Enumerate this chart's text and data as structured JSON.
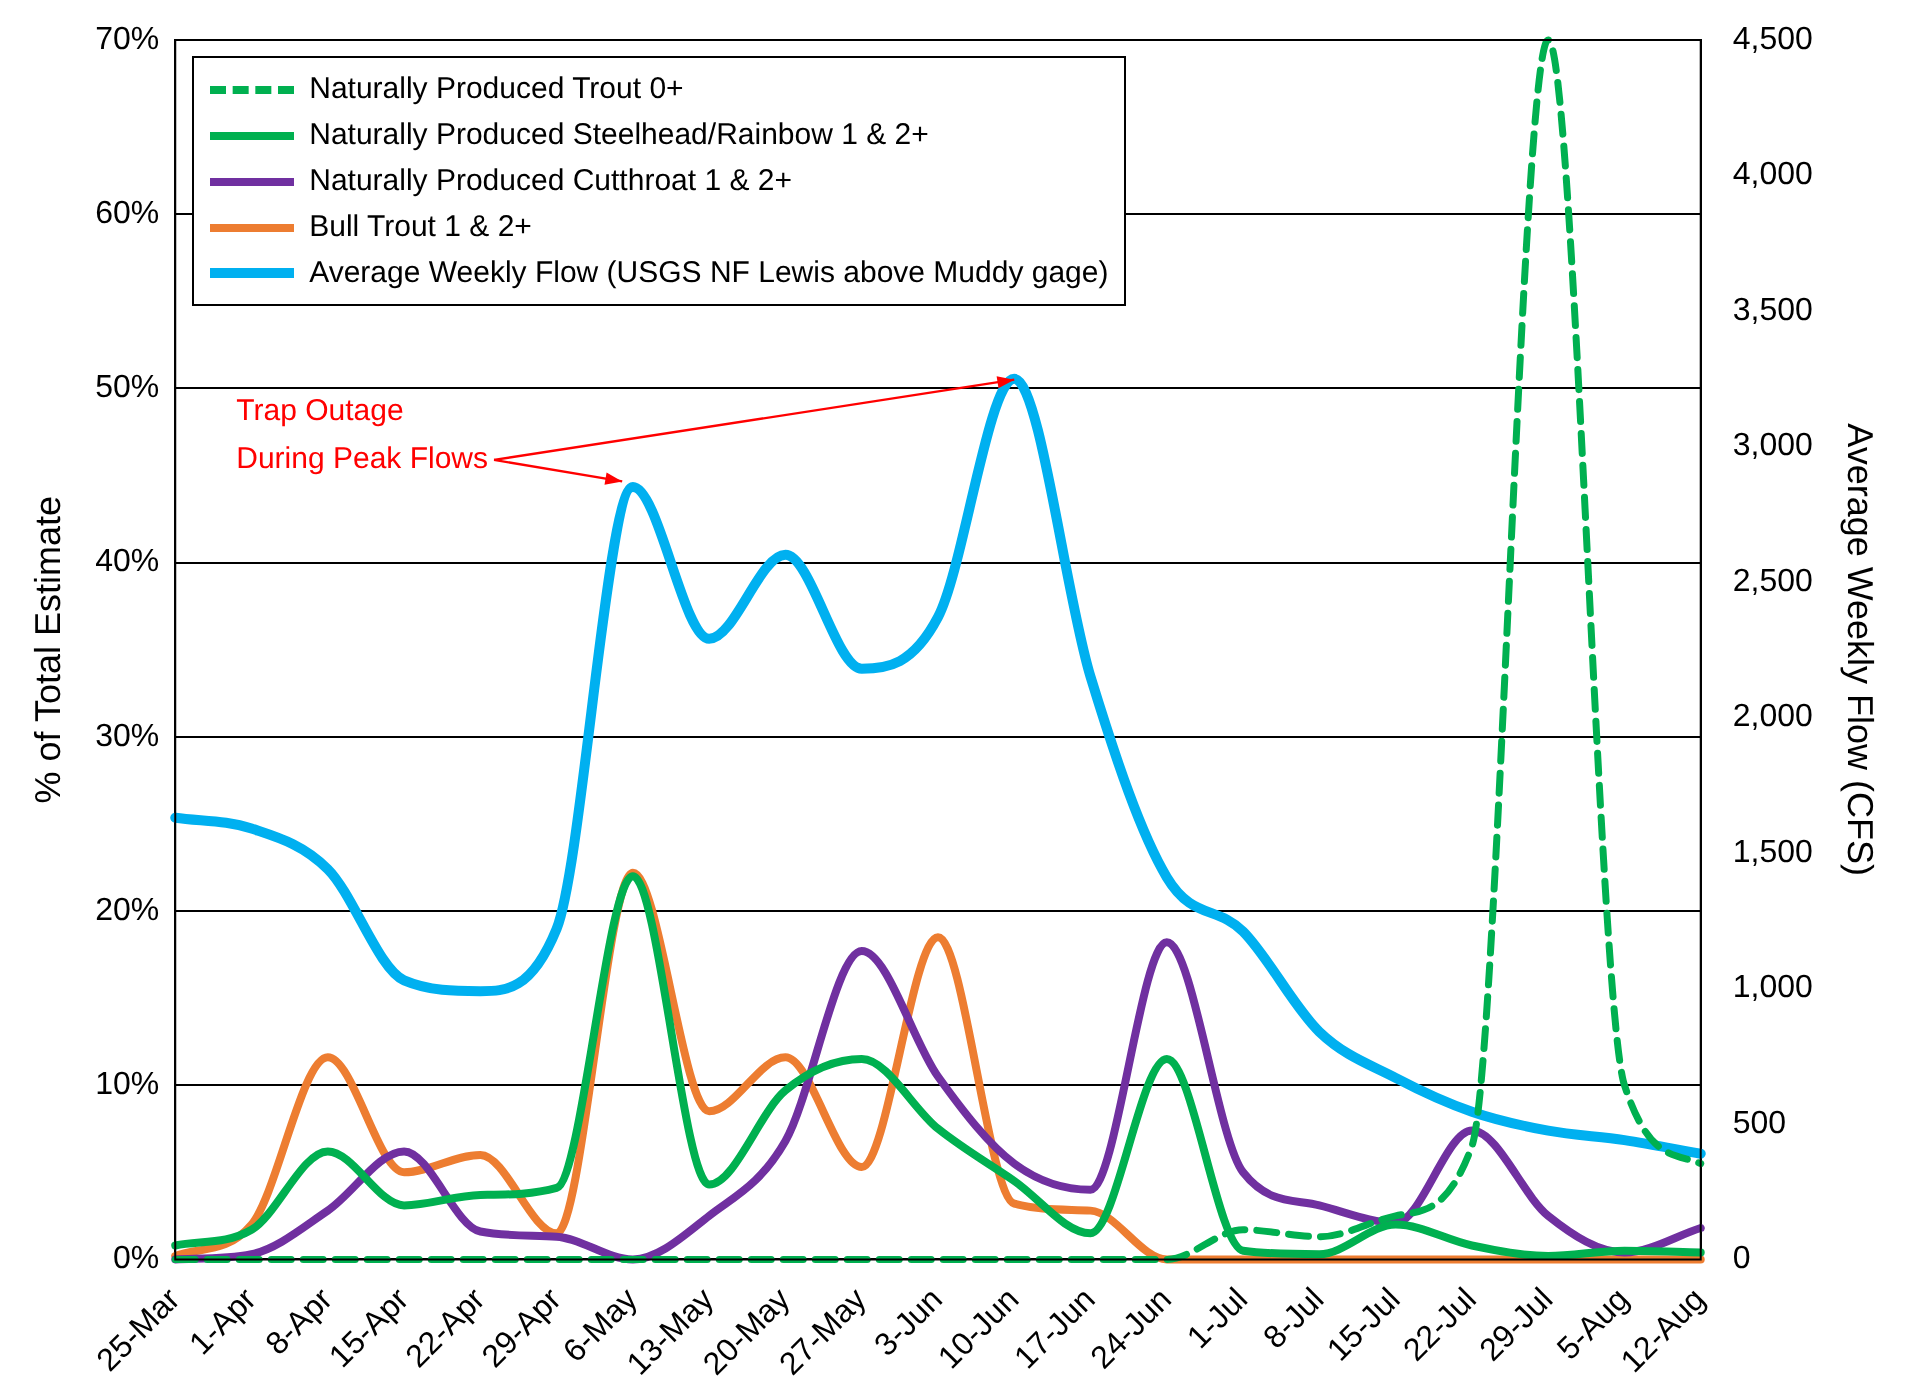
{
  "chart_data": {
    "type": "line",
    "ylabel": "% of Total Estimate",
    "y2label": "Average Weekly Flow (CFS)",
    "categories": [
      "25-Mar",
      "1-Apr",
      "8-Apr",
      "15-Apr",
      "22-Apr",
      "29-Apr",
      "6-May",
      "13-May",
      "20-May",
      "27-May",
      "3-Jun",
      "10-Jun",
      "17-Jun",
      "24-Jun",
      "1-Jul",
      "8-Jul",
      "15-Jul",
      "22-Jul",
      "29-Jul",
      "5-Aug",
      "12-Aug"
    ],
    "series": [
      {
        "name": "Naturally Produced Trout 0+",
        "color": "#00b050",
        "line_style": "dashed",
        "values": [
          0,
          0,
          0,
          0,
          0,
          0,
          0,
          0,
          0,
          0,
          0,
          0,
          0,
          0,
          1.7,
          1.3,
          2.5,
          6.5,
          70,
          10,
          5.5
        ]
      },
      {
        "name": "Naturally Produced Steelhead/Rainbow 1 & 2+",
        "color": "#00b050",
        "values": [
          0.8,
          1.7,
          6.2,
          3.1,
          3.7,
          4.1,
          22,
          4.3,
          9.7,
          11.5,
          7.5,
          4.5,
          1.5,
          11.5,
          0.5,
          0.3,
          2,
          0.8,
          0.2,
          0.5,
          0.4
        ]
      },
      {
        "name": "Naturally Produced Cutthroat 1 & 2+",
        "color": "#7030a0",
        "values": [
          0,
          0.3,
          2.8,
          6.2,
          1.6,
          1.3,
          0,
          2.5,
          6.8,
          17.7,
          10.5,
          5.5,
          4,
          18.2,
          5,
          3.1,
          2.1,
          7.4,
          2.5,
          0.4,
          1.8
        ]
      },
      {
        "name": "Bull Trout 1 & 2+",
        "color": "#ed7d31",
        "values": [
          0.2,
          2,
          11.6,
          5,
          6,
          1.5,
          22.2,
          8.5,
          11.6,
          5.3,
          18.5,
          3.2,
          2.8,
          0,
          0,
          0,
          0,
          0,
          0,
          0,
          0
        ]
      },
      {
        "name": "Average Weekly Flow (USGS NF Lewis above Muddy gage)",
        "color": "#00b0f0",
        "axis": "y2",
        "values": [
          1630,
          1590,
          1440,
          1030,
          990,
          1220,
          2850,
          2290,
          2600,
          2180,
          2370,
          3250,
          2150,
          1410,
          1210,
          840,
          670,
          545,
          475,
          440,
          390
        ]
      }
    ],
    "ylim": [
      0,
      70
    ],
    "yticks": [
      {
        "value": 0,
        "label": "0%"
      },
      {
        "value": 10,
        "label": "10%"
      },
      {
        "value": 20,
        "label": "20%"
      },
      {
        "value": 30,
        "label": "30%"
      },
      {
        "value": 40,
        "label": "40%"
      },
      {
        "value": 50,
        "label": "50%"
      },
      {
        "value": 60,
        "label": "60%"
      },
      {
        "value": 70,
        "label": "70%"
      }
    ],
    "y2lim": [
      0,
      4500
    ],
    "y2ticks": [
      {
        "value": 0,
        "label": "0"
      },
      {
        "value": 500,
        "label": "500"
      },
      {
        "value": 1000,
        "label": "1,000"
      },
      {
        "value": 1500,
        "label": "1,500"
      },
      {
        "value": 2000,
        "label": "2,000"
      },
      {
        "value": 2500,
        "label": "2,500"
      },
      {
        "value": 3000,
        "label": "3,000"
      },
      {
        "value": 3500,
        "label": "3,500"
      },
      {
        "value": 4000,
        "label": "4,000"
      },
      {
        "value": 4500,
        "label": "4,500"
      }
    ],
    "annotations": [
      {
        "text": "Trap Outage\nDuring Peak Flows",
        "x": "10-Jun",
        "y": 50.5
      }
    ],
    "grid": "y",
    "legend": "top left",
    "marker": "none"
  }
}
